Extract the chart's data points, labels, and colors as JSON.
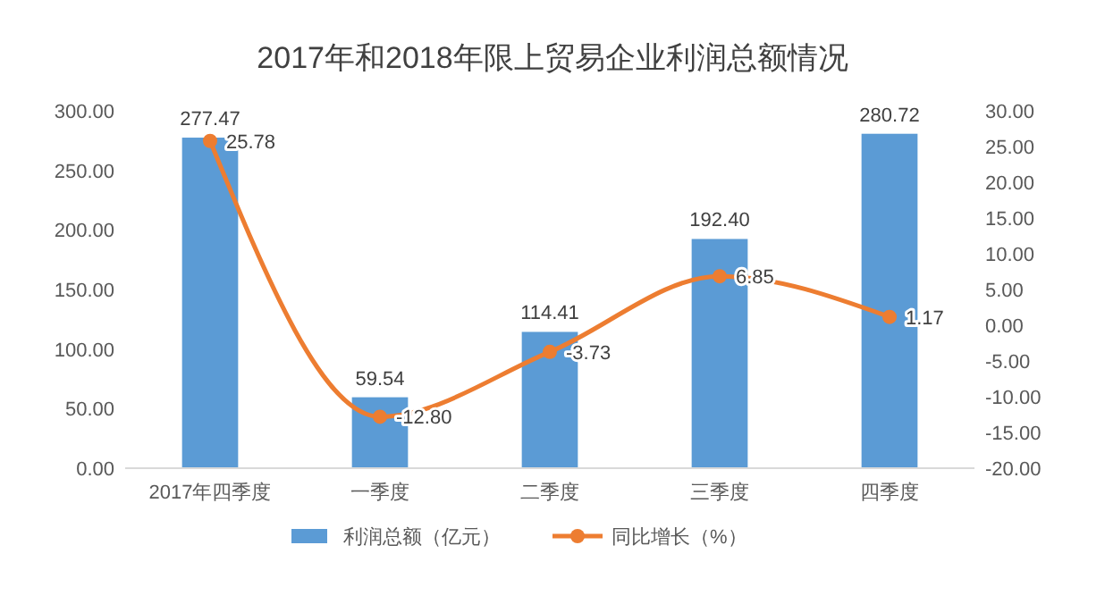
{
  "chart_data": {
    "type": "bar",
    "title": "2017年和2018年限上贸易企业利润总额情况",
    "categories": [
      "2017年四季度",
      "一季度",
      "二季度",
      "三季度",
      "四季度"
    ],
    "series": [
      {
        "name": "利润总额（亿元）",
        "color": "#5b9bd5",
        "values": [
          277.47,
          59.54,
          114.41,
          192.4,
          280.72
        ],
        "value_labels": [
          "277.47",
          "59.54",
          "114.41",
          "192.40",
          "280.72"
        ]
      },
      {
        "name": "同比增长（%）",
        "type": "line",
        "axis": "y2",
        "color": "#ed7d31",
        "marker": "circle",
        "values": [
          25.78,
          -12.8,
          -3.73,
          6.85,
          1.17
        ],
        "value_labels": [
          "25.78",
          "-12.80",
          "-3.73",
          "6.85",
          "1.17"
        ]
      }
    ],
    "ylim": [
      0,
      300
    ],
    "yticks": [
      {
        "value": 0,
        "label": "0.00"
      },
      {
        "value": 50,
        "label": "50.00"
      },
      {
        "value": 100,
        "label": "100.00"
      },
      {
        "value": 150,
        "label": "150.00"
      },
      {
        "value": 200,
        "label": "200.00"
      },
      {
        "value": 250,
        "label": "250.00"
      },
      {
        "value": 300,
        "label": "300.00"
      }
    ],
    "y2lim": [
      -20,
      30
    ],
    "y2ticks": [
      {
        "value": -20,
        "label": "-20.00"
      },
      {
        "value": -15,
        "label": "-15.00"
      },
      {
        "value": -10,
        "label": "-10.00"
      },
      {
        "value": -5,
        "label": "-5.00"
      },
      {
        "value": 0,
        "label": "0.00"
      },
      {
        "value": 5,
        "label": "5.00"
      },
      {
        "value": 10,
        "label": "10.00"
      },
      {
        "value": 15,
        "label": "15.00"
      },
      {
        "value": 20,
        "label": "20.00"
      },
      {
        "value": 25,
        "label": "25.00"
      },
      {
        "value": 30,
        "label": "30.00"
      }
    ],
    "legend": "bottom"
  }
}
